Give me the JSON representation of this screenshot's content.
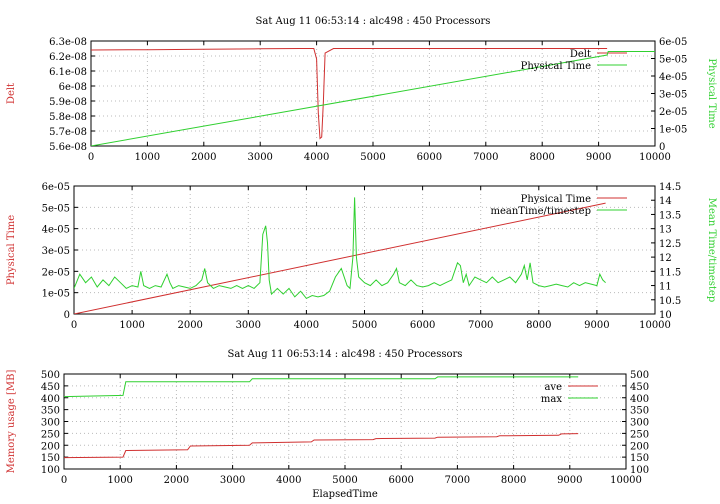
{
  "chart_data": [
    {
      "type": "line",
      "title": "Sat Aug 11 06:53:14 : alc498 : 450 Processors",
      "xlabel": "",
      "ylabel": "Delt",
      "y2label": "Physical Time",
      "xlim": [
        0,
        10000
      ],
      "ylim": [
        5.6e-08,
        6.3e-08
      ],
      "y2lim": [
        0,
        6e-05
      ],
      "x_ticks": [
        "0",
        "1000",
        "2000",
        "3000",
        "4000",
        "5000",
        "6000",
        "7000",
        "8000",
        "9000",
        "10000"
      ],
      "y_ticks": [
        "5.6e-08",
        "5.7e-08",
        "5.8e-08",
        "5.9e-08",
        "6e-08",
        "6.1e-08",
        "6.2e-08",
        "6.3e-08"
      ],
      "y2_ticks": [
        "0",
        "1e-05",
        "2e-05",
        "3e-05",
        "4e-05",
        "5e-05",
        "6e-05"
      ],
      "legend_position": "top-right",
      "grid": true,
      "series": [
        {
          "name": "Delt",
          "color": "#d03030",
          "axis": "y1",
          "x": [
            0,
            1000,
            2000,
            3000,
            3700,
            3950,
            4000,
            4030,
            4060,
            4090,
            4120,
            4150,
            4300,
            5000,
            9150
          ],
          "y": [
            6.24e-08,
            6.242e-08,
            6.245e-08,
            6.248e-08,
            6.25e-08,
            6.25e-08,
            6.18e-08,
            5.82e-08,
            5.65e-08,
            5.66e-08,
            5.9e-08,
            6.22e-08,
            6.25e-08,
            6.25e-08,
            6.25e-08
          ]
        },
        {
          "name": "Physical Time",
          "color": "#30d030",
          "axis": "y2",
          "x": [
            0,
            9150,
            9170,
            10000
          ],
          "y": [
            0,
            5.2e-05,
            5.4e-05,
            5.4e-05
          ]
        }
      ]
    },
    {
      "type": "line",
      "title": "",
      "xlabel": "",
      "ylabel": "Physical Time",
      "y2label": "Mean Time/timestep",
      "xlim": [
        0,
        10000
      ],
      "ylim": [
        0,
        6e-05
      ],
      "y2lim": [
        10,
        14.5
      ],
      "x_ticks": [
        "0",
        "1000",
        "2000",
        "3000",
        "4000",
        "5000",
        "6000",
        "7000",
        "8000",
        "9000",
        "10000"
      ],
      "y_ticks": [
        "0",
        "1e-05",
        "2e-05",
        "3e-05",
        "4e-05",
        "5e-05",
        "6e-05"
      ],
      "y2_ticks": [
        "10",
        "10.5",
        "11",
        "11.5",
        "12",
        "12.5",
        "13",
        "13.5",
        "14",
        "14.5"
      ],
      "legend_position": "top-right",
      "grid": true,
      "series": [
        {
          "name": "Physical Time",
          "color": "#d03030",
          "axis": "y1",
          "x": [
            0,
            9150
          ],
          "y": [
            0,
            5.2e-05
          ]
        },
        {
          "name": "meanTime/timestep",
          "color": "#30d030",
          "axis": "y2",
          "x": [
            0,
            100,
            200,
            300,
            400,
            500,
            600,
            700,
            800,
            900,
            1000,
            1100,
            1150,
            1200,
            1300,
            1400,
            1500,
            1600,
            1650,
            1700,
            1800,
            1900,
            2000,
            2100,
            2200,
            2250,
            2300,
            2400,
            2500,
            2600,
            2700,
            2800,
            2900,
            3000,
            3100,
            3200,
            3250,
            3300,
            3330,
            3360,
            3400,
            3500,
            3600,
            3700,
            3800,
            3900,
            4000,
            4100,
            4200,
            4300,
            4400,
            4500,
            4600,
            4700,
            4750,
            4800,
            4830,
            4860,
            4900,
            5000,
            5100,
            5200,
            5300,
            5400,
            5500,
            5550,
            5600,
            5700,
            5800,
            5900,
            6000,
            6100,
            6200,
            6300,
            6400,
            6500,
            6600,
            6650,
            6700,
            6750,
            6800,
            6900,
            7000,
            7100,
            7200,
            7300,
            7400,
            7500,
            7600,
            7700,
            7750,
            7800,
            7850,
            7900,
            8000,
            8100,
            8200,
            8300,
            8400,
            8500,
            8600,
            8700,
            8800,
            8900,
            9000,
            9050,
            9100,
            9150
          ],
          "y": [
            10.9,
            11.4,
            11.1,
            11.3,
            10.95,
            11.2,
            11.0,
            11.3,
            11.1,
            10.9,
            11.0,
            10.95,
            11.5,
            11.0,
            10.9,
            11.0,
            10.95,
            11.4,
            11.1,
            10.9,
            11.0,
            10.95,
            10.9,
            11.0,
            11.2,
            11.6,
            11.1,
            10.9,
            11.0,
            10.95,
            10.9,
            11.0,
            10.9,
            11.0,
            10.9,
            11.1,
            12.8,
            13.1,
            12.5,
            11.2,
            10.7,
            10.9,
            10.7,
            10.9,
            10.6,
            10.8,
            10.55,
            10.65,
            10.6,
            10.65,
            10.8,
            11.3,
            11.6,
            11.0,
            10.9,
            12.0,
            14.1,
            12.0,
            11.3,
            11.1,
            11.0,
            11.2,
            11.0,
            11.1,
            11.4,
            11.6,
            11.1,
            11.0,
            11.2,
            11.0,
            10.95,
            11.0,
            11.1,
            11.0,
            11.1,
            11.2,
            11.8,
            11.7,
            11.1,
            11.4,
            11.0,
            11.3,
            11.2,
            11.1,
            11.3,
            11.1,
            11.2,
            11.3,
            11.1,
            11.4,
            11.7,
            11.2,
            11.8,
            11.1,
            11.0,
            10.95,
            11.0,
            11.05,
            11.0,
            10.95,
            11.1,
            11.0,
            11.1,
            11.05,
            11.0,
            11.4,
            11.2,
            11.1
          ]
        }
      ]
    },
    {
      "type": "line",
      "title": "Sat Aug 11 06:53:14 : alc498 : 450 Processors",
      "xlabel": "ElapsedTime",
      "ylabel": "Memory usage [MB]",
      "y2label": "",
      "xlim": [
        0,
        10000
      ],
      "ylim": [
        100,
        500
      ],
      "y2lim": [
        100,
        500
      ],
      "x_ticks": [
        "0",
        "1000",
        "2000",
        "3000",
        "4000",
        "5000",
        "6000",
        "7000",
        "8000",
        "9000",
        "10000"
      ],
      "y_ticks": [
        "100",
        "150",
        "200",
        "250",
        "300",
        "350",
        "400",
        "450",
        "500"
      ],
      "y2_ticks": [
        "100",
        "150",
        "200",
        "250",
        "300",
        "350",
        "400",
        "450",
        "500"
      ],
      "legend_position": "top-right",
      "grid": true,
      "series": [
        {
          "name": "ave",
          "color": "#d03030",
          "axis": "y1",
          "x": [
            0,
            1050,
            1100,
            2200,
            2250,
            3300,
            3350,
            4400,
            4450,
            5500,
            5550,
            6600,
            6650,
            7700,
            7750,
            8800,
            8850,
            9150
          ],
          "y": [
            148,
            150,
            178,
            181,
            197,
            200,
            210,
            214,
            222,
            224,
            228,
            230,
            234,
            236,
            240,
            242,
            248,
            249
          ]
        },
        {
          "name": "max",
          "color": "#30d030",
          "axis": "y1",
          "x": [
            0,
            1050,
            1100,
            3300,
            3350,
            6600,
            6650,
            9150
          ],
          "y": [
            405,
            410,
            467,
            467,
            480,
            480,
            488,
            488
          ]
        }
      ]
    }
  ]
}
